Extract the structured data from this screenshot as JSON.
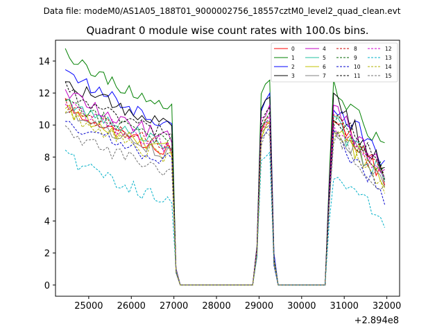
{
  "chart_data": {
    "type": "line",
    "suptitle": "Data file: modeM0/AS1A05_188T01_9000002756_18557cztM0_level2_quad_clean.evt",
    "title": "Quadrant 0 module wise count rates with 100.0s bins.",
    "xlabel": "",
    "ylabel": "",
    "x_offset_label": "+2.894e8",
    "xlim": [
      24220,
      32300
    ],
    "ylim": [
      -0.7,
      15.3
    ],
    "xticks": [
      25000,
      26000,
      27000,
      28000,
      29000,
      30000,
      31000,
      32000
    ],
    "yticks": [
      0,
      2,
      4,
      6,
      8,
      10,
      12,
      14
    ],
    "xtick_labels": [
      "25000",
      "26000",
      "27000",
      "28000",
      "29000",
      "30000",
      "31000",
      "32000"
    ],
    "ytick_labels": [
      "0",
      "2",
      "4",
      "6",
      "8",
      "10",
      "12",
      "14"
    ],
    "legend_position": "top-right",
    "x_segments": [
      {
        "start": 24450,
        "end": 26950,
        "step": 100
      },
      {
        "start": 27050,
        "end": 28850,
        "step": 100
      },
      {
        "start": 28950,
        "end": 29350,
        "step": 100
      },
      {
        "start": 29450,
        "end": 30550,
        "step": 100
      },
      {
        "start": 30650,
        "end": 31950,
        "step": 100
      }
    ],
    "series": [
      {
        "name": "0",
        "color": "#ff0000",
        "dash": "solid",
        "base": 11.6,
        "end": 8.4,
        "peak": 10.3,
        "base3": 10.3,
        "end3": 6.8
      },
      {
        "name": "1",
        "color": "#008000",
        "dash": "solid",
        "base": 14.6,
        "end": 11.2,
        "peak": 12.8,
        "base3": 12.5,
        "end3": 8.4
      },
      {
        "name": "2",
        "color": "#0000ff",
        "dash": "solid",
        "base": 13.8,
        "end": 10.0,
        "peak": 11.9,
        "base3": 11.5,
        "end3": 7.6
      },
      {
        "name": "3",
        "color": "#000000",
        "dash": "solid",
        "base": 13.0,
        "end": 10.0,
        "peak": 11.7,
        "base3": 11.5,
        "end3": 7.2
      },
      {
        "name": "4",
        "color": "#c000c0",
        "dash": "solid",
        "base": 12.2,
        "end": 9.2,
        "peak": 11.1,
        "base3": 11.0,
        "end3": 7.0
      },
      {
        "name": "5",
        "color": "#20c0a0",
        "dash": "solid",
        "base": 11.8,
        "end": 8.8,
        "peak": 10.4,
        "base3": 10.2,
        "end3": 6.6
      },
      {
        "name": "6",
        "color": "#c0c000",
        "dash": "solid",
        "base": 11.2,
        "end": 8.4,
        "peak": 10.1,
        "base3": 9.9,
        "end3": 6.4
      },
      {
        "name": "7",
        "color": "#808080",
        "dash": "solid",
        "base": 11.0,
        "end": 8.2,
        "peak": 10.0,
        "base3": 9.8,
        "end3": 6.3
      },
      {
        "name": "8",
        "color": "#cc0000",
        "dash": "dashed",
        "base": 11.4,
        "end": 8.6,
        "peak": 10.5,
        "base3": 10.3,
        "end3": 6.6
      },
      {
        "name": "9",
        "color": "#006400",
        "dash": "dashed",
        "base": 11.8,
        "end": 8.9,
        "peak": 10.6,
        "base3": 10.4,
        "end3": 6.9
      },
      {
        "name": "10",
        "color": "#0000cc",
        "dash": "dashed",
        "base": 10.4,
        "end": 7.8,
        "peak": 9.8,
        "base3": 9.5,
        "end3": 5.6
      },
      {
        "name": "11",
        "color": "#000000",
        "dash": "dashed",
        "base": 12.4,
        "end": 9.4,
        "peak": 11.0,
        "base3": 10.8,
        "end3": 7.1
      },
      {
        "name": "12",
        "color": "#cc00cc",
        "dash": "dashed",
        "base": 11.7,
        "end": 8.6,
        "peak": 10.4,
        "base3": 10.2,
        "end3": 6.7
      },
      {
        "name": "13",
        "color": "#00b0c8",
        "dash": "dashed",
        "base": 8.3,
        "end": 5.2,
        "peak": 8.5,
        "base3": 7.2,
        "end3": 4.0
      },
      {
        "name": "14",
        "color": "#b0b000",
        "dash": "dashed",
        "base": 11.0,
        "end": 7.9,
        "peak": 10.0,
        "base3": 9.7,
        "end3": 6.1
      },
      {
        "name": "15",
        "color": "#707070",
        "dash": "dashed",
        "base": 10.0,
        "end": 7.0,
        "peak": 9.6,
        "base3": 9.3,
        "end3": 5.8
      }
    ]
  }
}
